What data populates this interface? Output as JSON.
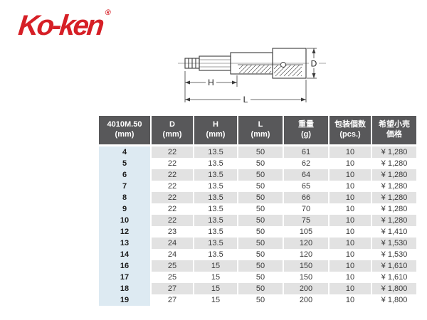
{
  "logo": {
    "text": "Ko-ken",
    "registered": "®"
  },
  "diagram": {
    "labels": {
      "d": "D",
      "h": "H",
      "l": "L"
    }
  },
  "table": {
    "headers": [
      {
        "line1": "4010M.50",
        "line2": "(mm)"
      },
      {
        "line1": "D",
        "line2": "(mm)"
      },
      {
        "line1": "H",
        "line2": "(mm)"
      },
      {
        "line1": "L",
        "line2": "(mm)"
      },
      {
        "line1": "重量",
        "line2": "(g)"
      },
      {
        "line1": "包装個数",
        "line2": "(pcs.)"
      },
      {
        "line1": "希望小売",
        "line2": "価格"
      }
    ],
    "rows": [
      [
        "4",
        "22",
        "13.5",
        "50",
        "61",
        "10",
        "¥ 1,280"
      ],
      [
        "5",
        "22",
        "13.5",
        "50",
        "62",
        "10",
        "¥ 1,280"
      ],
      [
        "6",
        "22",
        "13.5",
        "50",
        "64",
        "10",
        "¥ 1,280"
      ],
      [
        "7",
        "22",
        "13.5",
        "50",
        "65",
        "10",
        "¥ 1,280"
      ],
      [
        "8",
        "22",
        "13.5",
        "50",
        "66",
        "10",
        "¥ 1,280"
      ],
      [
        "9",
        "22",
        "13.5",
        "50",
        "70",
        "10",
        "¥ 1,280"
      ],
      [
        "10",
        "22",
        "13.5",
        "50",
        "75",
        "10",
        "¥ 1,280"
      ],
      [
        "12",
        "23",
        "13.5",
        "50",
        "105",
        "10",
        "¥ 1,410"
      ],
      [
        "13",
        "24",
        "13.5",
        "50",
        "120",
        "10",
        "¥ 1,530"
      ],
      [
        "14",
        "24",
        "13.5",
        "50",
        "120",
        "10",
        "¥ 1,530"
      ],
      [
        "16",
        "25",
        "15",
        "50",
        "150",
        "10",
        "¥ 1,610"
      ],
      [
        "17",
        "25",
        "15",
        "50",
        "150",
        "10",
        "¥ 1,610"
      ],
      [
        "18",
        "27",
        "15",
        "50",
        "200",
        "10",
        "¥ 1,800"
      ],
      [
        "19",
        "27",
        "15",
        "50",
        "200",
        "10",
        "¥ 1,800"
      ]
    ]
  },
  "colors": {
    "brand_red": "#d61f26",
    "header_bg": "#58585a",
    "header_text": "#ffffff",
    "row_alt_gray": "#e2e2e2",
    "first_col_blue": "#ddeaf2"
  }
}
